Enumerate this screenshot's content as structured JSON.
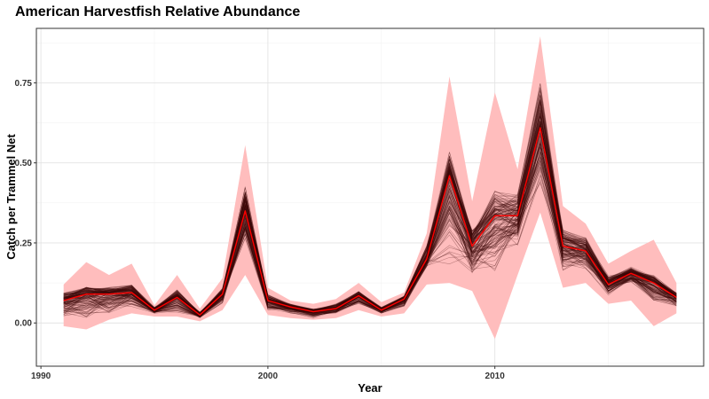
{
  "chart_data": {
    "type": "line",
    "title": "American Harvestfish Relative Abundance",
    "xlabel": "Year",
    "ylabel": "Catch per Trammel Net",
    "xlim": [
      1989.8,
      2019.2
    ],
    "ylim": [
      -0.135,
      0.92
    ],
    "x_ticks": [
      1990,
      2000,
      2010
    ],
    "y_ticks": [
      0.0,
      0.25,
      0.5,
      0.75
    ],
    "y_tick_labels": [
      "0.00",
      "0.25",
      "0.50",
      "0.75"
    ],
    "grid": true,
    "legend": "none",
    "x": [
      1991,
      1992,
      1993,
      1994,
      1995,
      1996,
      1997,
      1998,
      1999,
      2000,
      2001,
      2002,
      2003,
      2004,
      2005,
      2006,
      2007,
      2008,
      2009,
      2010,
      2011,
      2012,
      2013,
      2014,
      2015,
      2016,
      2017,
      2018
    ],
    "series": [
      {
        "role": "mean",
        "color": "#ff0000",
        "values": [
          0.07,
          0.09,
          0.09,
          0.095,
          0.04,
          0.08,
          0.025,
          0.09,
          0.35,
          0.07,
          0.05,
          0.035,
          0.045,
          0.085,
          0.04,
          0.075,
          0.2,
          0.46,
          0.24,
          0.335,
          0.335,
          0.61,
          0.24,
          0.225,
          0.12,
          0.155,
          0.125,
          0.08
        ]
      }
    ],
    "interval": {
      "color": "#ffbdbd",
      "lower": [
        -0.01,
        -0.02,
        0.01,
        0.03,
        0.02,
        0.02,
        0.005,
        0.04,
        0.15,
        0.025,
        0.015,
        0.01,
        0.015,
        0.04,
        0.02,
        0.03,
        0.12,
        0.125,
        0.1,
        -0.05,
        0.15,
        0.345,
        0.11,
        0.125,
        0.06,
        0.07,
        -0.01,
        0.03
      ],
      "upper": [
        0.12,
        0.19,
        0.15,
        0.185,
        0.055,
        0.15,
        0.045,
        0.14,
        0.555,
        0.11,
        0.07,
        0.06,
        0.075,
        0.125,
        0.065,
        0.095,
        0.28,
        0.77,
        0.38,
        0.72,
        0.48,
        0.895,
        0.365,
        0.31,
        0.185,
        0.225,
        0.26,
        0.125
      ]
    },
    "draws": {
      "color": "#3d0a0a",
      "count": 140,
      "lower": [
        0.015,
        0.01,
        0.02,
        0.05,
        0.03,
        0.03,
        0.015,
        0.06,
        0.24,
        0.04,
        0.03,
        0.015,
        0.03,
        0.06,
        0.03,
        0.05,
        0.175,
        0.18,
        0.15,
        0.1,
        0.23,
        0.42,
        0.16,
        0.165,
        0.085,
        0.125,
        0.06,
        0.05
      ],
      "upper": [
        0.095,
        0.115,
        0.115,
        0.12,
        0.05,
        0.105,
        0.035,
        0.11,
        0.44,
        0.09,
        0.06,
        0.045,
        0.06,
        0.1,
        0.05,
        0.085,
        0.245,
        0.54,
        0.3,
        0.42,
        0.41,
        0.76,
        0.3,
        0.27,
        0.15,
        0.175,
        0.15,
        0.095
      ]
    }
  }
}
